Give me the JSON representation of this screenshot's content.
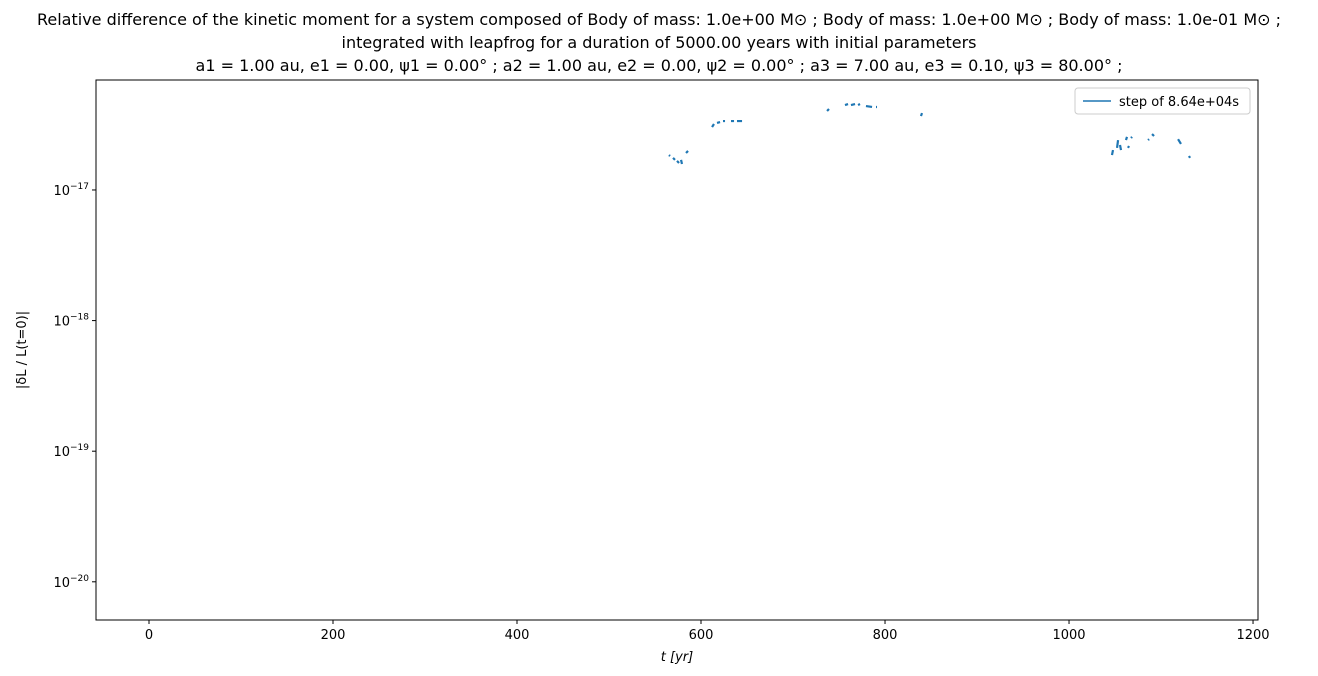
{
  "chart_data": {
    "type": "line",
    "title": [
      "Relative difference of the kinetic moment for a system composed of Body of mass: 1.0e+00 M⊙ ; Body of mass: 1.0e+00 M⊙ ; Body of mass: 1.0e-01 M⊙ ;",
      "integrated with leapfrog for a duration of 5000.00 years with initial parameters",
      "a1 = 1.00 au, e1 = 0.00, ψ1 = 0.00° ; a2 = 1.00 au, e2 = 0.00, ψ2 = 0.00° ; a3 = 7.00 au, e3 = 0.10, ψ3 = 80.00° ;"
    ],
    "xlabel": "t [yr]",
    "ylabel": "|δL / L(t=0)|",
    "x": [
      565.2,
      566.3,
      null,
      569.6,
      571.7,
      null,
      573.9,
      576.1,
      null,
      578.3,
      579.3,
      null,
      583.7,
      585.9,
      null,
      612.0,
      614.1,
      null,
      617.4,
      620.7,
      null,
      623.9,
      626.1,
      null,
      632.6,
      635.9,
      null,
      639.1,
      644.6,
      null,
      737.0,
      739.1,
      null,
      756.5,
      759.8,
      null,
      763.0,
      767.4,
      null,
      770.7,
      772.8,
      null,
      779.3,
      785.9,
      null,
      790.2,
      791.3,
      null,
      839.1,
      840.2,
      null,
      1046.7,
      1047.8,
      null,
      1052.2,
      1053.3,
      null,
      1055.4,
      1056.5,
      null,
      1061.9,
      1063.0,
      null,
      1064.1,
      1065.2,
      null,
      1067.4,
      1068.5,
      null,
      1085.9,
      1087.0,
      null,
      1090.2,
      1092.4,
      null,
      1118.5,
      1121.7,
      null,
      1130.4,
      1131.5
    ],
    "series": [
      {
        "name": "step of 8.64e+04s",
        "color": "#1f77b4",
        "values": [
          1.85e-17,
          1.82e-17,
          null,
          1.76e-17,
          1.7e-17,
          null,
          1.67e-17,
          1.61e-17,
          null,
          1.7e-17,
          1.58e-17,
          null,
          1.92e-17,
          1.99e-17,
          null,
          3.03e-17,
          3.2e-17,
          null,
          3.26e-17,
          3.31e-17,
          null,
          3.37e-17,
          3.37e-17,
          null,
          3.37e-17,
          3.37e-17,
          null,
          3.37e-17,
          3.37e-17,
          null,
          4.02e-17,
          4.17e-17,
          null,
          4.47e-17,
          4.55e-17,
          null,
          4.47e-17,
          4.55e-17,
          null,
          4.47e-17,
          4.55e-17,
          null,
          4.39e-17,
          4.32e-17,
          null,
          4.32e-17,
          4.32e-17,
          null,
          3.68e-17,
          3.88e-17,
          null,
          1.85e-17,
          2.02e-17,
          null,
          2.1e-17,
          2.41e-17,
          null,
          2.21e-17,
          2.02e-17,
          null,
          2.41e-17,
          2.55e-17,
          null,
          2.1e-17,
          2.17e-17,
          null,
          2.5e-17,
          2.55e-17,
          null,
          2.41e-17,
          2.45e-17,
          null,
          2.68e-17,
          2.59e-17,
          null,
          2.45e-17,
          2.25e-17,
          null,
          1.82e-17,
          1.76e-17
        ]
      }
    ],
    "xlim": [
      -57.6,
      1205.4
    ],
    "xticks": [
      0,
      200,
      400,
      600,
      800,
      1000,
      1200
    ],
    "ylim": [
      5.1e-21,
      6.95e-17
    ],
    "log_y": true,
    "yticks": [
      {
        "value": 1e-20,
        "label": [
          "10",
          "−20"
        ]
      },
      {
        "value": 1e-19,
        "label": [
          "10",
          "−19"
        ]
      },
      {
        "value": 1e-18,
        "label": [
          "10",
          "−18"
        ]
      },
      {
        "value": 1e-17,
        "label": [
          "10",
          "−17"
        ]
      }
    ],
    "legend": "upper right"
  }
}
